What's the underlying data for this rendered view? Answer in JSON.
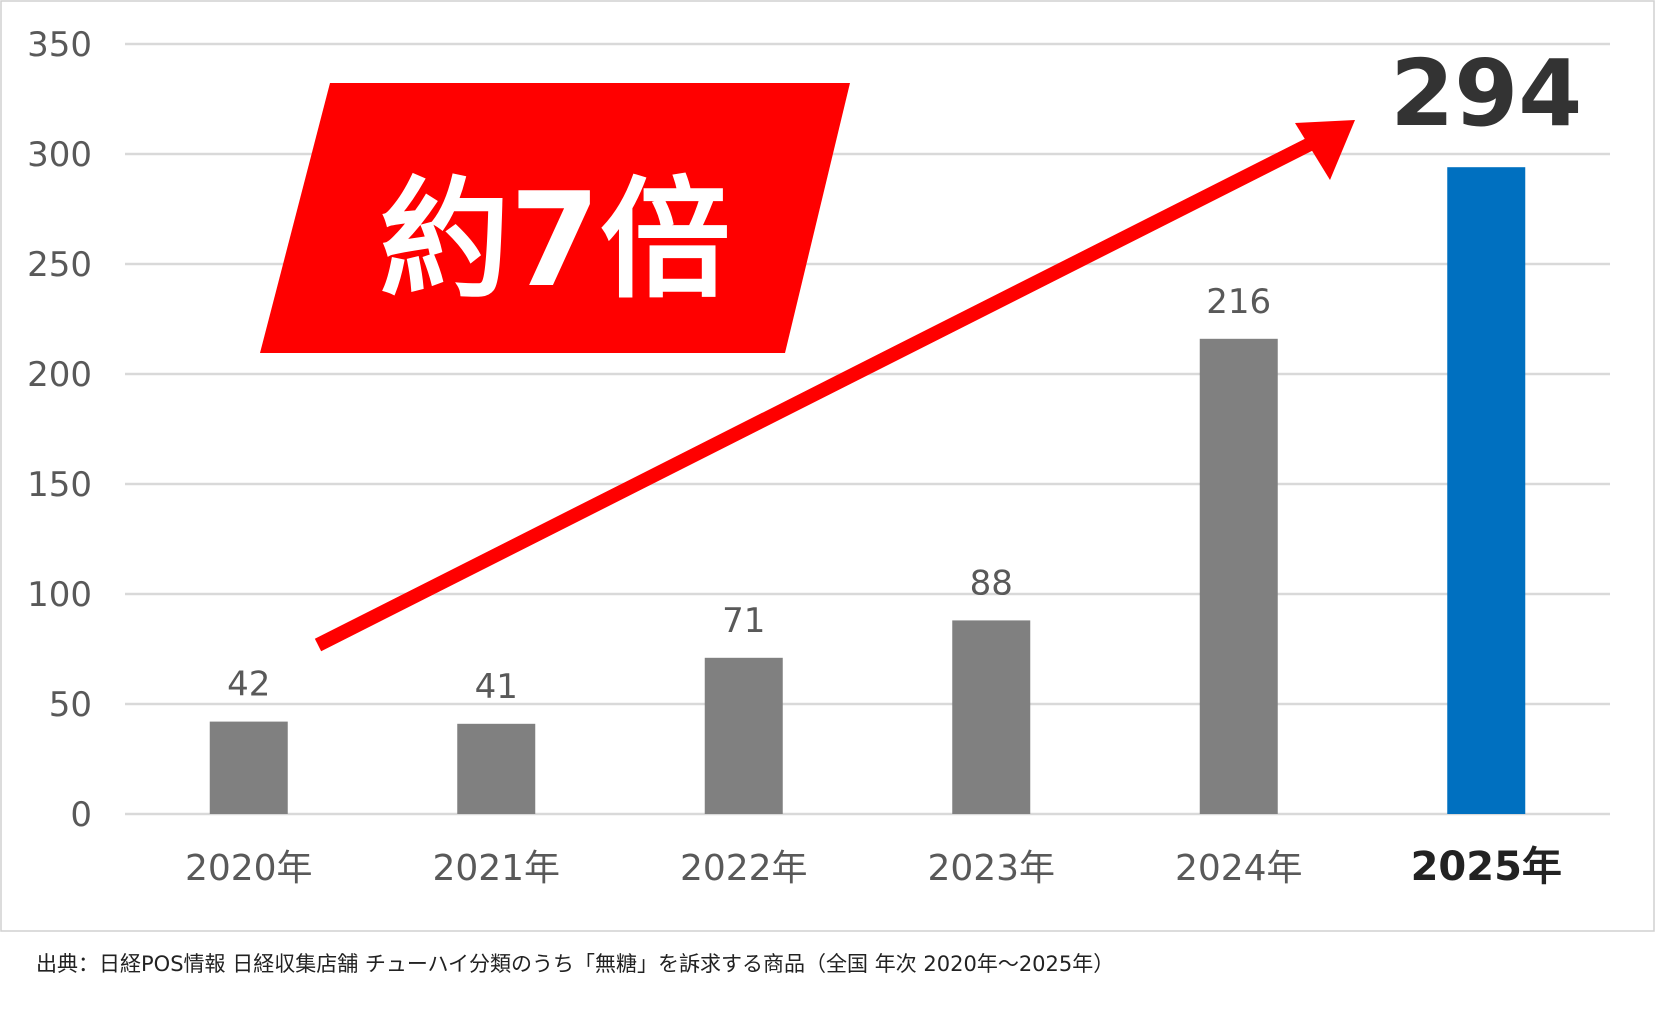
{
  "chart_data": {
    "type": "bar",
    "categories": [
      "2020年",
      "2021年",
      "2022年",
      "2023年",
      "2024年",
      "2025年"
    ],
    "values": [
      42,
      41,
      71,
      88,
      216,
      294
    ],
    "ylim": [
      0,
      350
    ],
    "yticks": [
      0,
      50,
      100,
      150,
      200,
      250,
      300,
      350
    ],
    "grid": true,
    "highlight_category": "2025年",
    "callout": "約7倍",
    "colors": {
      "bar": "#808080",
      "highlight_bar": "#0070C0",
      "callout_bg": "#FF0000",
      "arrow": "#FF0000",
      "grid": "#D9D9D9",
      "tick_text": "#595959",
      "highlight_text": "#222222"
    }
  },
  "source": "出典：日経POS情報 日経収集店舗 チューハイ分類のうち「無糖」を訴求する商品（全国 年次 2020年～2025年）"
}
